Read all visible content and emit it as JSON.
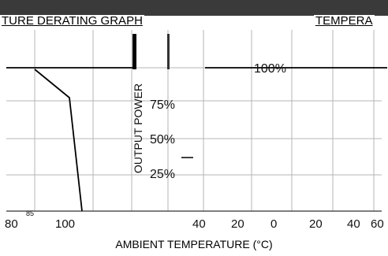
{
  "titles": {
    "left": "TURE DERATING GRAPH",
    "right": "TEMPERA"
  },
  "chart_data": {
    "type": "line",
    "xlabel": "AMBIENT TEMPERATURE (°C)",
    "ylabel": "OUTPUT POWER",
    "yticks": [
      "100%",
      "75%",
      "50%",
      "25%"
    ],
    "xticks": [
      "80",
      "100",
      "40",
      "20",
      "0",
      "20",
      "40",
      "60"
    ],
    "annotations": [
      "85"
    ],
    "grid": true,
    "series": [
      {
        "x": [
          25,
          80,
          100
        ],
        "y": [
          100,
          80,
          0
        ]
      },
      {
        "x": [
          -40,
          70
        ],
        "y": [
          100,
          100
        ]
      }
    ]
  }
}
